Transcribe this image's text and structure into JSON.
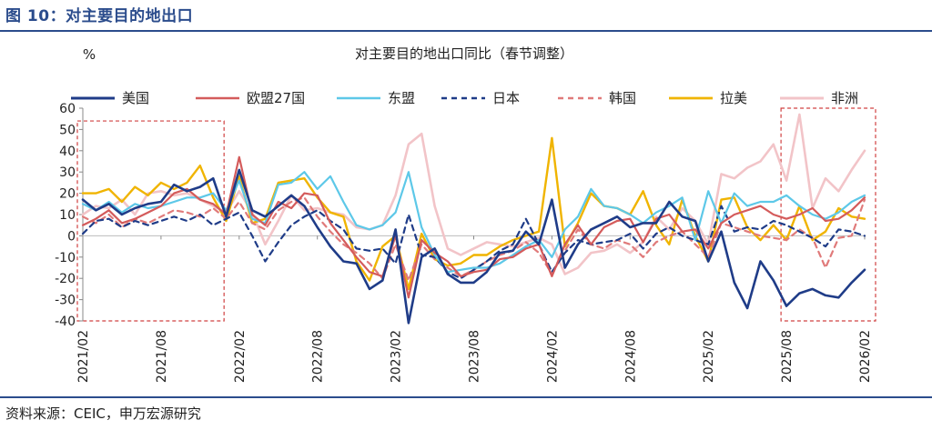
{
  "figure": {
    "title": "图 10：对主要目的地出口",
    "source": "资料来源：CEIC，申万宏源研究"
  },
  "chart_data": {
    "type": "line",
    "title": "对主要目的地出口同比（春节调整）",
    "ylabel": "%",
    "xlabel": "",
    "ylim": [
      -40,
      60
    ],
    "yticks": [
      -40,
      -30,
      -20,
      -10,
      0,
      10,
      20,
      30,
      40,
      50,
      60
    ],
    "x_tick_labels": [
      "2021/02",
      "2021/08",
      "2022/02",
      "2022/08",
      "2023/02",
      "2023/08",
      "2024/02",
      "2024/08",
      "2025/02",
      "2025/08",
      "2026/02"
    ],
    "x": [
      "2021/02",
      "2021/03",
      "2021/04",
      "2021/05",
      "2021/06",
      "2021/07",
      "2021/08",
      "2021/09",
      "2021/10",
      "2021/11",
      "2021/12",
      "2022/01",
      "2022/02",
      "2022/03",
      "2022/04",
      "2022/05",
      "2022/06",
      "2022/07",
      "2022/08",
      "2022/09",
      "2022/10",
      "2022/11",
      "2022/12",
      "2023/01",
      "2023/02",
      "2023/03",
      "2023/04",
      "2023/05",
      "2023/06",
      "2023/07",
      "2023/08",
      "2023/09",
      "2023/10",
      "2023/11",
      "2023/12",
      "2024/01",
      "2024/02",
      "2024/03",
      "2024/04",
      "2024/05",
      "2024/06",
      "2024/07",
      "2024/08",
      "2024/09",
      "2024/10",
      "2024/11",
      "2024/12",
      "2025/01",
      "2025/02",
      "2025/03",
      "2025/04",
      "2025/05",
      "2025/06",
      "2025/07",
      "2025/08",
      "2025/09",
      "2025/10",
      "2025/11",
      "2025/12",
      "2026/01",
      "2026/02"
    ],
    "series": [
      {
        "name": "美国",
        "color": "#1f3c88",
        "dash": "solid",
        "width": 2.6,
        "values": [
          17,
          12,
          15,
          10,
          13,
          15,
          16,
          24,
          21,
          23,
          27,
          9,
          31,
          12,
          9,
          14,
          19,
          14,
          4,
          -5,
          -12,
          -13,
          -25,
          -21,
          3,
          -41,
          -10,
          -6,
          -18,
          -22,
          -22,
          -17,
          -8,
          -7,
          2,
          -4,
          17,
          -15,
          -4,
          3,
          6,
          9,
          4,
          6,
          6,
          16,
          9,
          7,
          -12,
          2,
          -22,
          -34,
          -12,
          -21,
          -33,
          -27,
          -25,
          -28,
          -29,
          -22,
          -16
        ]
      },
      {
        "name": "欧盟27国",
        "color": "#d45b5b",
        "dash": "solid",
        "width": 2.2,
        "values": [
          5,
          8,
          12,
          6,
          8,
          11,
          14,
          20,
          22,
          17,
          15,
          10,
          37,
          10,
          5,
          16,
          13,
          20,
          19,
          6,
          -2,
          -10,
          -17,
          -19,
          0,
          -29,
          -2,
          -8,
          -12,
          -19,
          -17,
          -16,
          -11,
          -10,
          -6,
          -4,
          -19,
          -4,
          5,
          -4,
          4,
          7,
          8,
          -3,
          8,
          10,
          2,
          3,
          -6,
          6,
          10,
          12,
          14,
          10,
          8,
          10,
          13,
          7,
          8,
          12,
          18
        ]
      },
      {
        "name": "东盟",
        "color": "#5dc8e8",
        "dash": "solid",
        "width": 2.2,
        "values": [
          15,
          12,
          16,
          11,
          15,
          13,
          14,
          16,
          18,
          18,
          20,
          12,
          26,
          8,
          6,
          24,
          25,
          30,
          22,
          28,
          16,
          5,
          3,
          5,
          11,
          30,
          4,
          -9,
          -17,
          -16,
          -15,
          -15,
          -13,
          -9,
          -5,
          -2,
          -10,
          3,
          9,
          22,
          14,
          13,
          10,
          6,
          11,
          14,
          18,
          -2,
          21,
          6,
          20,
          14,
          16,
          16,
          19,
          14,
          10,
          8,
          11,
          16,
          19
        ]
      },
      {
        "name": "日本",
        "color": "#1f3c88",
        "dash": "6,5",
        "width": 2.2,
        "values": [
          1,
          7,
          8,
          4,
          7,
          5,
          7,
          9,
          7,
          10,
          5,
          8,
          11,
          0,
          -12,
          -3,
          5,
          9,
          12,
          7,
          3,
          -6,
          -7,
          -6,
          -13,
          10,
          -9,
          -10,
          -17,
          -20,
          -16,
          -12,
          -7,
          -4,
          8,
          -4,
          -17,
          -8,
          -2,
          -4,
          -3,
          -2,
          1,
          -6,
          1,
          4,
          0,
          -2,
          -4,
          14,
          2,
          4,
          3,
          7,
          5,
          2,
          -1,
          -5,
          3,
          2,
          0
        ]
      },
      {
        "name": "韩国",
        "color": "#e07a7a",
        "dash": "6,5",
        "width": 2.2,
        "values": [
          9,
          6,
          10,
          4,
          8,
          6,
          9,
          12,
          11,
          9,
          13,
          8,
          16,
          6,
          3,
          12,
          16,
          18,
          9,
          2,
          -4,
          -8,
          -13,
          -20,
          -4,
          -21,
          -4,
          -11,
          -15,
          -19,
          -16,
          -12,
          -9,
          -7,
          -3,
          -8,
          -18,
          -7,
          3,
          -4,
          -6,
          -2,
          -4,
          -10,
          -3,
          0,
          2,
          -4,
          -10,
          6,
          4,
          2,
          0,
          -1,
          -2,
          3,
          -1,
          -15,
          -1,
          0,
          17
        ]
      },
      {
        "name": "拉美",
        "color": "#f0b400",
        "dash": "solid",
        "width": 2.4,
        "values": [
          20,
          20,
          22,
          16,
          23,
          19,
          25,
          22,
          25,
          33,
          18,
          7,
          28,
          6,
          8,
          25,
          26,
          27,
          18,
          11,
          9,
          -12,
          -21,
          -5,
          0,
          -25,
          1,
          -11,
          -14,
          -13,
          -9,
          -9,
          -5,
          -2,
          0,
          2,
          46,
          -5,
          6,
          20,
          14,
          13,
          10,
          21,
          5,
          -4,
          17,
          0,
          -12,
          17,
          18,
          4,
          -2,
          5,
          -2,
          14,
          -2,
          2,
          13,
          9,
          8
        ]
      },
      {
        "name": "非洲",
        "color": "#f2c4c8",
        "dash": "solid",
        "width": 2.6,
        "values": [
          10,
          14,
          13,
          17,
          10,
          20,
          21,
          19,
          20,
          17,
          14,
          11,
          21,
          11,
          -4,
          7,
          19,
          12,
          13,
          11,
          10,
          4,
          3,
          5,
          19,
          43,
          48,
          14,
          -6,
          -9,
          -6,
          -3,
          -4,
          -5,
          -3,
          -1,
          -4,
          -18,
          -15,
          -8,
          -7,
          -4,
          -8,
          -3,
          9,
          3,
          13,
          7,
          -4,
          29,
          27,
          32,
          35,
          43,
          26,
          57,
          13,
          27,
          21,
          31,
          40
        ]
      }
    ]
  },
  "legend": {
    "placement": "top",
    "items": [
      "美国",
      "欧盟27国",
      "东盟",
      "日本",
      "韩国",
      "拉美",
      "非洲"
    ]
  },
  "highlight_boxes": {
    "color": "#d04040",
    "boxes": [
      {
        "from": "2021/02",
        "to": "2021/12",
        "y_from": -40,
        "y_to": 54
      },
      {
        "from": "2025/08",
        "to": "2026/02",
        "y_from": -40,
        "y_to": 60
      }
    ]
  }
}
